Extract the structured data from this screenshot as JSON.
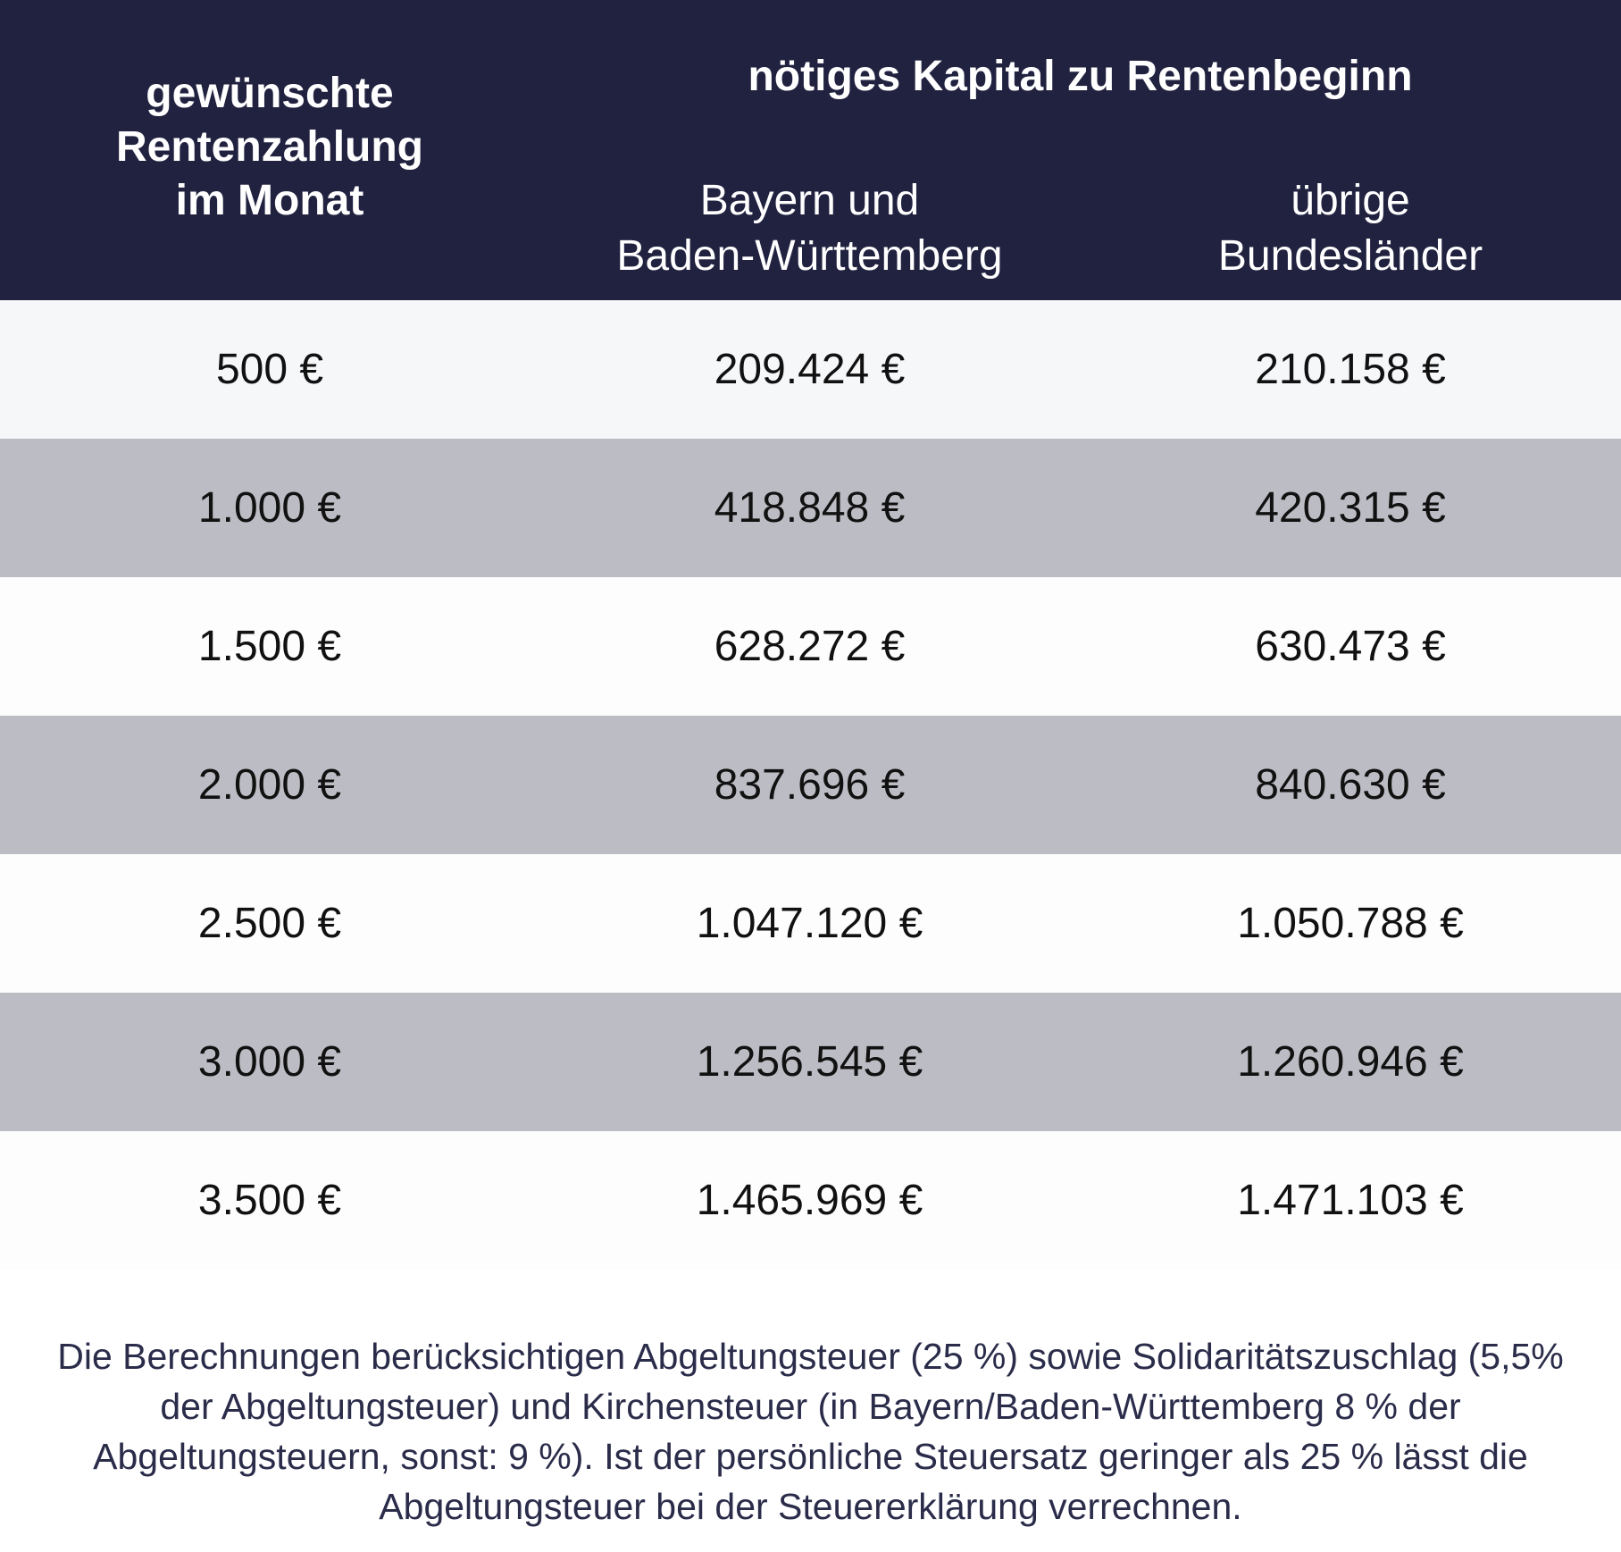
{
  "header": {
    "col1_lines": [
      "gewünschte",
      "Rentenzahlung",
      "im Monat"
    ],
    "group_title": "nötiges Kapital zu Rentenbeginn",
    "col2_lines": [
      "Bayern und",
      "Baden-Württemberg"
    ],
    "col3_lines": [
      "übrige",
      "Bundesländer"
    ]
  },
  "rows": [
    {
      "rente": "500 €",
      "bayern_bw": "209.424 €",
      "uebrige": "210.158 €"
    },
    {
      "rente": "1.000 €",
      "bayern_bw": "418.848 €",
      "uebrige": "420.315 €"
    },
    {
      "rente": "1.500 €",
      "bayern_bw": "628.272 €",
      "uebrige": "630.473 €"
    },
    {
      "rente": "2.000 €",
      "bayern_bw": "837.696 €",
      "uebrige": "840.630 €"
    },
    {
      "rente": "2.500 €",
      "bayern_bw": "1.047.120 €",
      "uebrige": "1.050.788 €"
    },
    {
      "rente": "3.000 €",
      "bayern_bw": "1.256.545 €",
      "uebrige": "1.260.946 €"
    },
    {
      "rente": "3.500 €",
      "bayern_bw": "1.465.969 €",
      "uebrige": "1.471.103 €"
    }
  ],
  "footnote": "Die Berechnungen berücksichtigen Abgeltungsteuer (25 %) sowie Solidaritätszuschlag (5,5% der Abgeltungsteuer) und Kirchensteuer (in Bayern/Baden-Württemberg 8 % der Abgeltungsteuern, sonst: 9 %). Ist der persönliche Steuersatz geringer als 25 % lässt die Abgeltungsteuer bei der Steuererklärung verrechnen.",
  "colors": {
    "header_bg": "#212240",
    "row_light": "#f6f7f9",
    "row_white": "#fcfdfc",
    "row_grey": "#bcbcc4",
    "footnote_text": "#2a2c4a"
  }
}
